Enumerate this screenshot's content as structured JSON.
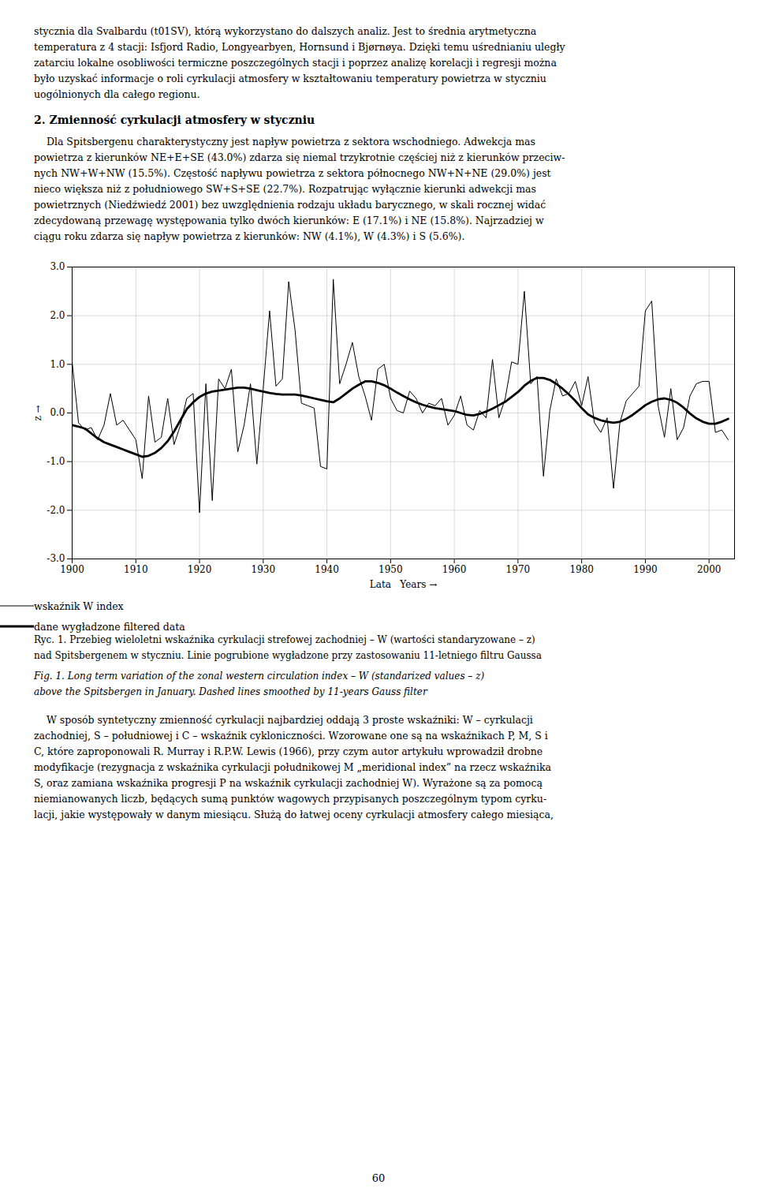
{
  "text_above": [
    "stycznia dla Svalbardu (t01SV), którą wykorzystano do dalszych analiz. Jest to średnia arytmetyczna",
    "temperatura z 4 stacji: Isfjord Radio, Longyearbyen, Hornsund i Bjørnøya. Dzięki temu uśrednianiu uległy",
    "zatarciu lokalne osobliwości termiczne poszczególnych stacji i poprzez analizę korelacji i regresji można",
    "było uzyskać informacje o roli cyrkulacji atmosfery w kształtowaniu temperatury powietrza w styczniu",
    "uogólnionych dla całego regionu."
  ],
  "heading": "2. Zmienność cyrkulacji atmosfery w styczniu",
  "paragraph": [
    "    Dla Spitsbergenu charakterystyczny jest napływ powietrza z sektora wschodniego. Adwekcja mas",
    "powietrza z kierunków NE+E+SE (43.0%) zdarza się niemal trzykrotnie częściej niż z kierunków przeciw-",
    "nych NW+W+NW (15.5%). Częstość napływu powietrza z sektora północnego NW+N+NE (29.0%) jest",
    "nieco większa niż z południowego SW+S+SE (22.7%). Rozpatrując wyłącznie kierunki adwekcji mas",
    "powietrznych (Niedźwiedź 2001) bez uwzględnienia rodzaju układu barycznego, w skali rocznej widać",
    "zdecydowaną przewagę występowania tylko dwóch kierunków: E (17.1%) i NE (15.8%). Najrzadziej w",
    "ciągu roku zdarza się napływ powietrza z kierunków: NW (4.1%), W (4.3%) i S (5.6%)."
  ],
  "chart_data": {
    "type": "line",
    "xlabel": "Lata   Years",
    "ylabel": "z",
    "x": [
      1900,
      1901,
      1902,
      1903,
      1904,
      1905,
      1906,
      1907,
      1908,
      1909,
      1910,
      1911,
      1912,
      1913,
      1914,
      1915,
      1916,
      1917,
      1918,
      1919,
      1920,
      1921,
      1922,
      1923,
      1924,
      1925,
      1926,
      1927,
      1928,
      1929,
      1930,
      1931,
      1932,
      1933,
      1934,
      1935,
      1936,
      1937,
      1938,
      1939,
      1940,
      1941,
      1942,
      1943,
      1944,
      1945,
      1946,
      1947,
      1948,
      1949,
      1950,
      1951,
      1952,
      1953,
      1954,
      1955,
      1956,
      1957,
      1958,
      1959,
      1960,
      1961,
      1962,
      1963,
      1964,
      1965,
      1966,
      1967,
      1968,
      1969,
      1970,
      1971,
      1972,
      1973,
      1974,
      1975,
      1976,
      1977,
      1978,
      1979,
      1980,
      1981,
      1982,
      1983,
      1984,
      1985,
      1986,
      1987,
      1988,
      1989,
      1990,
      1991,
      1992,
      1993,
      1994,
      1995,
      1996,
      1997,
      1998,
      1999,
      2000,
      2001,
      2002,
      2003
    ],
    "series": [
      {
        "name": "wskaźnik W index",
        "color": "black",
        "values": [
          1.05,
          -0.2,
          -0.35,
          -0.3,
          -0.55,
          -0.25,
          0.4,
          -0.25,
          -0.15,
          -0.35,
          -0.55,
          -1.35,
          0.35,
          -0.6,
          -0.5,
          0.3,
          -0.65,
          -0.25,
          0.3,
          0.4,
          -2.05,
          0.6,
          -1.8,
          0.7,
          0.5,
          0.9,
          -0.8,
          -0.25,
          0.6,
          -1.05,
          0.5,
          2.1,
          0.55,
          0.7,
          2.7,
          1.7,
          0.2,
          0.15,
          0.1,
          -1.1,
          -1.15,
          2.75,
          0.6,
          1.0,
          1.45,
          0.75,
          0.35,
          -0.15,
          0.9,
          1.0,
          0.3,
          0.05,
          0.0,
          0.45,
          0.3,
          0.0,
          0.2,
          0.15,
          0.3,
          -0.25,
          -0.05,
          0.35,
          -0.25,
          -0.35,
          0.05,
          -0.1,
          1.1,
          -0.1,
          0.3,
          1.05,
          1.0,
          2.5,
          0.6,
          0.75,
          -1.3,
          0.05,
          0.7,
          0.35,
          0.4,
          0.65,
          0.15,
          0.75,
          -0.2,
          -0.4,
          -0.1,
          -1.55,
          -0.2,
          0.25,
          0.4,
          0.55,
          2.1,
          2.3,
          0.15,
          -0.5,
          0.5,
          -0.55,
          -0.3,
          0.35,
          0.6,
          0.65,
          0.65,
          -0.4,
          -0.35,
          -0.55
        ]
      },
      {
        "name": "dane wygładzone filtered data",
        "color": "black",
        "values": [
          -0.25,
          -0.28,
          -0.32,
          -0.42,
          -0.52,
          -0.6,
          -0.65,
          -0.7,
          -0.75,
          -0.8,
          -0.85,
          -0.9,
          -0.88,
          -0.82,
          -0.72,
          -0.58,
          -0.38,
          -0.15,
          0.08,
          0.22,
          0.33,
          0.4,
          0.44,
          0.46,
          0.48,
          0.5,
          0.52,
          0.52,
          0.5,
          0.47,
          0.44,
          0.41,
          0.39,
          0.38,
          0.38,
          0.38,
          0.36,
          0.33,
          0.3,
          0.27,
          0.24,
          0.22,
          0.3,
          0.4,
          0.5,
          0.58,
          0.65,
          0.65,
          0.62,
          0.57,
          0.5,
          0.42,
          0.35,
          0.28,
          0.22,
          0.17,
          0.13,
          0.1,
          0.08,
          0.06,
          0.04,
          0.0,
          -0.04,
          -0.05,
          -0.02,
          0.03,
          0.09,
          0.16,
          0.23,
          0.33,
          0.43,
          0.56,
          0.66,
          0.72,
          0.72,
          0.68,
          0.6,
          0.5,
          0.38,
          0.25,
          0.1,
          -0.03,
          -0.1,
          -0.15,
          -0.18,
          -0.2,
          -0.18,
          -0.12,
          -0.04,
          0.06,
          0.16,
          0.23,
          0.28,
          0.3,
          0.27,
          0.21,
          0.11,
          -0.01,
          -0.11,
          -0.18,
          -0.22,
          -0.22,
          -0.18,
          -0.12
        ]
      }
    ],
    "xlim": [
      1900,
      2004
    ],
    "xticks": [
      1900,
      1910,
      1920,
      1930,
      1940,
      1950,
      1960,
      1970,
      1980,
      1990,
      2000
    ],
    "ylim": [
      -3.0,
      3.0
    ],
    "yticks": [
      {
        "value": -3.0,
        "label": "-3.0"
      },
      {
        "value": -2.0,
        "label": "-2.0"
      },
      {
        "value": -1.0,
        "label": "-1.0"
      },
      {
        "value": 0.0,
        "label": "0.0"
      },
      {
        "value": 1.0,
        "label": "1.0"
      },
      {
        "value": 2.0,
        "label": "2.0"
      },
      {
        "value": 3.0,
        "label": "3.0"
      }
    ],
    "grid": true,
    "caption": [
      "Ryc. 1. Przebieg wieloletni wskaźnika cyrkulacji strefowej zachodniej – W (wartości standaryzowane – z)",
      "nad Spitsbergenem w styczniu. Linie pogrubione wygładzone przy zastosowaniu 11-letniego filtru Gaussa",
      "Fig. 1. Long term variation of the zonal western circulation index – W (standarized values – z)",
      "above the Spitsbergen in January. Dashed lines smoothed by 11-years Gauss filter"
    ]
  },
  "text_below": [
    "    W sposób syntetyczny zmienność cyrkulacji najbardziej oddają 3 proste wskaźniki: W – cyrkulacji",
    "zachodniej, S – południowej i C – wskaźnik cykloniczności. Wzorowane one są na wskaźnikach P, M, S i",
    "C, które zaproponowali R. Murray i R.P.W. Lewis (1966), przy czym autor artykułu wprowadził drobne",
    "modyfikacje (rezygnacja z wskaźnika cyrkulacji południkowej M „meridional index” na rzecz wskaźnika",
    "S, oraz zamiana wskaźnika progresji P na wskaźnik cyrkulacji zachodniej W). Wyrażone są za pomocą",
    "niemianowanych liczb, będących sumą punktów wagowych przypisanych poszczególnym typom cyrku-",
    "lacji, jakie występowały w danym miesiącu. Służą do łatwej oceny cyrkulacji atmosfery całego miesiąca,"
  ],
  "page_number": "60"
}
